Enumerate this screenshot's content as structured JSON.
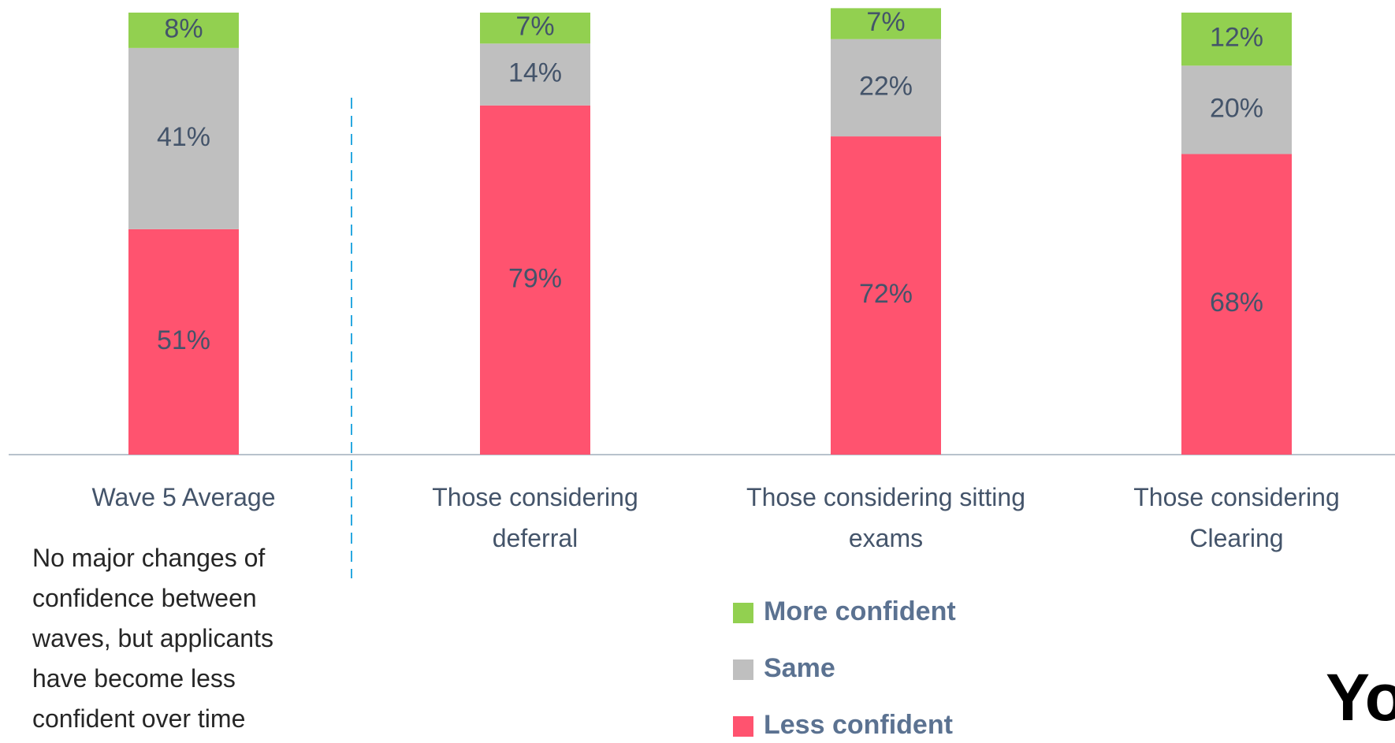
{
  "chart_data": {
    "type": "stacked_bar",
    "categories": [
      "Wave 5 Average",
      "Those considering deferral",
      "Those considering sitting exams",
      "Those considering Clearing"
    ],
    "series": [
      {
        "name": "Less confident",
        "color": "#ff536f",
        "values": [
          51,
          79,
          72,
          68
        ],
        "value_labels": [
          "51%",
          "79%",
          "72%",
          "68%"
        ]
      },
      {
        "name": "Same",
        "color": "#bfbfbf",
        "values": [
          41,
          14,
          22,
          20
        ],
        "value_labels": [
          "41%",
          "14%",
          "22%",
          "20%"
        ]
      },
      {
        "name": "More confident",
        "color": "#92d050",
        "values": [
          8,
          7,
          7,
          12
        ],
        "value_labels": [
          "8%",
          "7%",
          "7%",
          "12%"
        ]
      }
    ],
    "ylim": [
      0,
      100
    ],
    "annotation": "No major changes of confidence between waves, but applicants have become less confident over time",
    "logo": "Yo"
  }
}
